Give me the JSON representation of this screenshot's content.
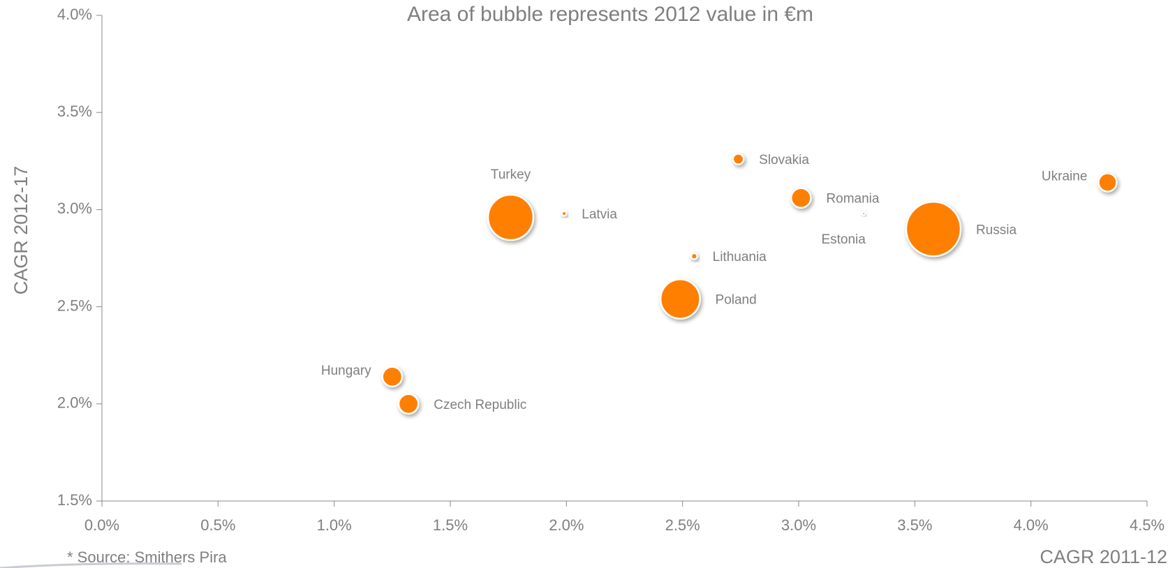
{
  "chart_data": {
    "type": "bubble",
    "title": "Area of bubble represents 2012 value in €m",
    "xlabel": "CAGR 2011-12",
    "ylabel": "CAGR 2012-17",
    "source": "* Source: Smithers Pira",
    "color": "#ff7f00",
    "xlim": [
      0,
      4.5
    ],
    "ylim": [
      1.5,
      4.0
    ],
    "xticks": [
      {
        "value": 0,
        "label": "0.0%"
      },
      {
        "value": 0.5,
        "label": "0.5%"
      },
      {
        "value": 1.0,
        "label": "1.0%"
      },
      {
        "value": 1.5,
        "label": "1.5%"
      },
      {
        "value": 2.0,
        "label": "2.0%"
      },
      {
        "value": 2.5,
        "label": "2.5%"
      },
      {
        "value": 3.0,
        "label": "3.0%"
      },
      {
        "value": 3.5,
        "label": "3.5%"
      },
      {
        "value": 4.0,
        "label": "4.0%"
      },
      {
        "value": 4.5,
        "label": "4.5%"
      }
    ],
    "yticks": [
      {
        "value": 1.5,
        "label": "1.5%"
      },
      {
        "value": 2.0,
        "label": "2.0%"
      },
      {
        "value": 2.5,
        "label": "2.5%"
      },
      {
        "value": 3.0,
        "label": "3.0%"
      },
      {
        "value": 3.5,
        "label": "3.5%"
      },
      {
        "value": 4.0,
        "label": "4.0%"
      }
    ],
    "labels": [
      "Turkey",
      "Latvia",
      "Slovakia",
      "Romania",
      "Estonia",
      "Russia",
      "Ukraine",
      "Lithuania",
      "Poland",
      "Hungary",
      "Czech Republic"
    ],
    "x": [
      1.76,
      1.99,
      2.74,
      3.01,
      3.28,
      3.58,
      4.33,
      2.55,
      2.49,
      1.25,
      1.32
    ],
    "y": [
      2.96,
      2.98,
      3.26,
      3.06,
      2.98,
      2.9,
      3.14,
      2.76,
      2.54,
      2.14,
      2.0
    ],
    "sizes": [
      900,
      9,
      50,
      170,
      4,
      1300,
      145,
      16,
      680,
      170,
      170
    ]
  }
}
